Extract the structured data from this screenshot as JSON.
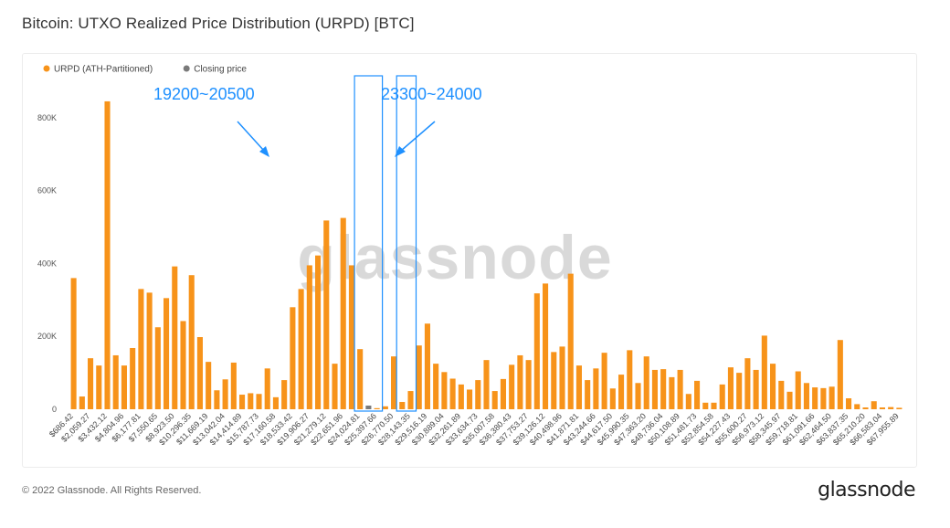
{
  "page": {
    "title": "Bitcoin: UTXO Realized Price Distribution (URPD) [BTC]",
    "copyright": "© 2022 Glassnode. All Rights Reserved.",
    "logo_text": "glassnode",
    "watermark_text": "glassnode"
  },
  "colors": {
    "urpd": "#f7931a",
    "closing": "#7a7a7a",
    "annotation": "#1e90ff",
    "grid": "#f0f0f0"
  },
  "legend": [
    {
      "label": "URPD (ATH-Partitioned)",
      "color": "#f7931a"
    },
    {
      "label": "Closing price",
      "color": "#7a7a7a"
    }
  ],
  "annotations": [
    {
      "label": "19200~20500",
      "from_index": 34,
      "to_index": 36
    },
    {
      "label": "23300~24000",
      "from_index": 39,
      "to_index": 40
    }
  ],
  "chart_data": {
    "type": "bar",
    "title": "Bitcoin: UTXO Realized Price Distribution (URPD) [BTC]",
    "ylim": [
      0,
      900000
    ],
    "yticks": [
      0,
      200000,
      400000,
      600000,
      800000
    ],
    "ytick_labels": [
      "0",
      "200K",
      "400K",
      "600K",
      "800K"
    ],
    "legend_position": "top-left",
    "grid": false,
    "xtick_labels": [
      "$686.42",
      "$2,059.27",
      "$3,432.12",
      "$4,804.96",
      "$6,177.81",
      "$7,550.65",
      "$8,923.50",
      "$10,296.35",
      "$11,669.19",
      "$13,042.04",
      "$14,414.89",
      "$15,787.73",
      "$17,160.58",
      "$18,533.42",
      "$19,906.27",
      "$21,279.12",
      "$22,651.96",
      "$24,024.81",
      "$25,397.66",
      "$26,770.50",
      "$28,143.35",
      "$29,516.19",
      "$30,889.04",
      "$32,261.89",
      "$33,634.73",
      "$35,007.58",
      "$36,380.43",
      "$37,753.27",
      "$39,126.12",
      "$40,498.96",
      "$41,871.81",
      "$43,244.66",
      "$44,617.50",
      "$45,990.35",
      "$47,363.20",
      "$48,736.04",
      "$50,108.89",
      "$51,481.73",
      "$52,854.58",
      "$54,227.43",
      "$55,600.27",
      "$56,973.12",
      "$58,345.97",
      "$59,718.81",
      "$61,091.66",
      "$62,464.50",
      "$63,837.35",
      "$65,210.20",
      "$66,583.04",
      "$67,955.89"
    ],
    "closing_index": 35,
    "series": [
      {
        "name": "URPD (ATH-Partitioned)",
        "values": [
          360000,
          35000,
          140000,
          120000,
          845000,
          148000,
          120000,
          168000,
          330000,
          320000,
          225000,
          305000,
          392000,
          242000,
          368000,
          198000,
          130000,
          52000,
          82000,
          128000,
          40000,
          44000,
          42000,
          112000,
          33000,
          80000,
          280000,
          330000,
          395000,
          422000,
          518000,
          125000,
          525000,
          395000,
          165000,
          10000,
          3000,
          8000,
          145000,
          20000,
          50000,
          175000,
          235000,
          125000,
          102000,
          84000,
          68000,
          54000,
          80000,
          135000,
          50000,
          83000,
          122000,
          148000,
          135000,
          318000,
          345000,
          157000,
          172000,
          372000,
          120000,
          80000,
          112000,
          155000,
          57000,
          95000,
          162000,
          72000,
          145000,
          108000,
          110000,
          88000,
          108000,
          42000,
          78000,
          18000,
          18000,
          68000,
          115000,
          100000,
          140000,
          108000,
          202000,
          125000,
          78000,
          48000,
          104000,
          72000,
          60000,
          58000,
          62000,
          190000,
          30000,
          14000,
          5000,
          22000,
          5000,
          6000,
          4000
        ]
      }
    ]
  }
}
